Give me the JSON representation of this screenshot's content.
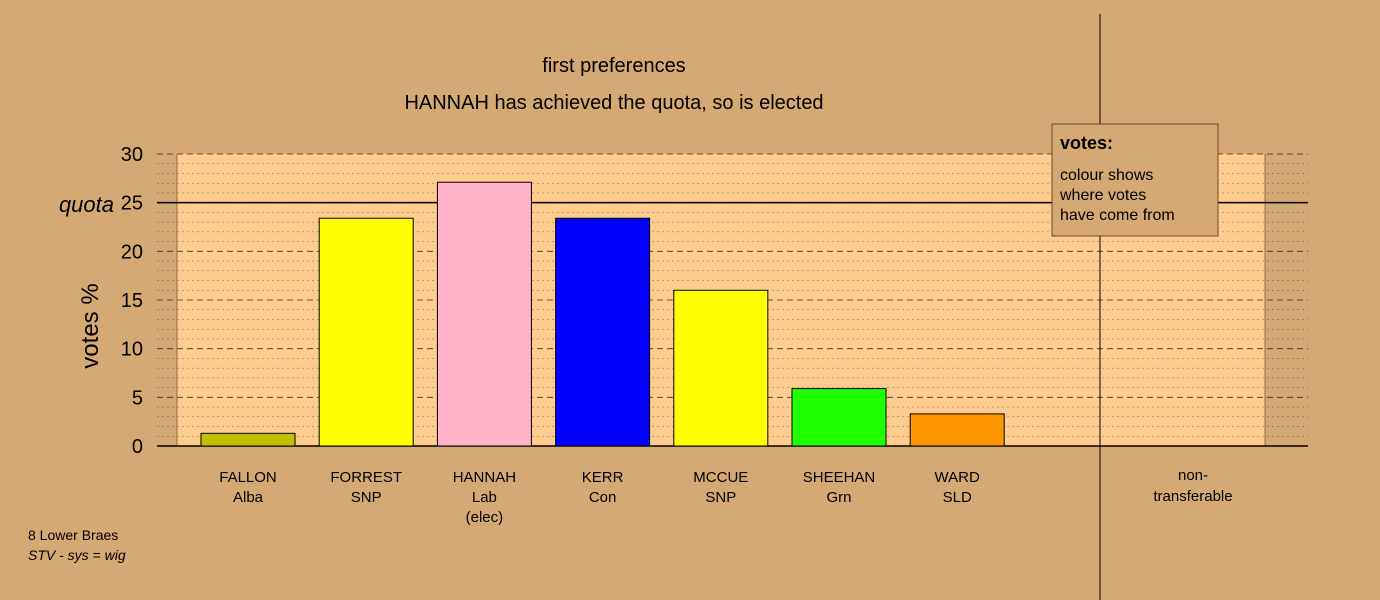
{
  "colors": {
    "page_background": "#d5a974",
    "plot_background": "#ffcc8f",
    "legend_background": "#d5a974"
  },
  "chart_data": {
    "type": "bar",
    "title": "first preferences",
    "subtitle": "HANNAH has achieved the quota, so is elected",
    "ylabel": "votes %",
    "ylim": [
      0,
      30
    ],
    "yticks": [
      "0",
      "5",
      "10",
      "15",
      "20",
      "25",
      "30"
    ],
    "quota": {
      "label": "quota",
      "value": 25
    },
    "grid": true,
    "categories": [
      {
        "name": "FALLON",
        "party": "Alba",
        "note": "",
        "value": 1.3,
        "color": "#c2c200"
      },
      {
        "name": "FORREST",
        "party": "SNP",
        "note": "",
        "value": 23.4,
        "color": "#ffff00"
      },
      {
        "name": "HANNAH",
        "party": "Lab",
        "note": "(elec)",
        "value": 27.1,
        "color": "#ffb2c8"
      },
      {
        "name": "KERR",
        "party": "Con",
        "note": "",
        "value": 23.4,
        "color": "#0000ff"
      },
      {
        "name": "MCCUE",
        "party": "SNP",
        "note": "",
        "value": 16.0,
        "color": "#ffff00"
      },
      {
        "name": "SHEEHAN",
        "party": "Grn",
        "note": "",
        "value": 5.9,
        "color": "#1eff00"
      },
      {
        "name": "WARD",
        "party": "SLD",
        "note": "",
        "value": 3.3,
        "color": "#ff9600"
      }
    ],
    "nontransferable": {
      "label_line1": "non-",
      "label_line2": "transferable",
      "value": 0
    },
    "legend": {
      "title": "votes:",
      "lines": [
        "colour shows",
        "where votes",
        "have come from"
      ],
      "placement": "top-right"
    }
  },
  "footer": {
    "ward": "8 Lower Braes",
    "system": "STV - sys = wig"
  }
}
